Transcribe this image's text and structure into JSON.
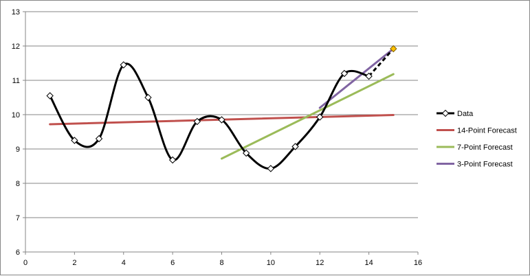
{
  "chart_data": {
    "type": "line",
    "title": "",
    "xlabel": "",
    "ylabel": "",
    "xlim": [
      0,
      16
    ],
    "ylim": [
      6,
      13
    ],
    "x_ticks": [
      0,
      2,
      4,
      6,
      8,
      10,
      12,
      14,
      16
    ],
    "y_ticks": [
      6,
      7,
      8,
      9,
      10,
      11,
      12,
      13
    ],
    "grid": "horizontal",
    "legend_position": "right",
    "series": [
      {
        "name": "Data",
        "color": "#000000",
        "style": "smooth-line-diamond-markers",
        "x": [
          1,
          2,
          3,
          4,
          5,
          6,
          7,
          8,
          9,
          10,
          11,
          12,
          13,
          14
        ],
        "y": [
          10.55,
          9.25,
          9.3,
          11.45,
          10.5,
          8.68,
          9.8,
          9.85,
          8.88,
          8.43,
          9.07,
          9.93,
          11.2,
          11.12
        ]
      },
      {
        "name": "Data (forecast extension)",
        "color": "#000000",
        "style": "dashed",
        "x": [
          14,
          15
        ],
        "y": [
          11.12,
          11.92
        ]
      },
      {
        "name": "14-Point Forecast",
        "color": "#C0504D",
        "style": "line",
        "x": [
          1,
          15
        ],
        "y": [
          9.72,
          9.99
        ]
      },
      {
        "name": "7-Point Forecast",
        "color": "#9BBB59",
        "style": "line",
        "x": [
          8,
          15
        ],
        "y": [
          8.72,
          11.18
        ]
      },
      {
        "name": "3-Point Forecast",
        "color": "#8064A2",
        "style": "line",
        "x": [
          12,
          15
        ],
        "y": [
          10.2,
          11.92
        ]
      }
    ],
    "forecast_point": {
      "x": 15,
      "y": 11.92,
      "color": "#FFC000"
    },
    "legend": [
      {
        "label": "Data",
        "color": "#000000",
        "marker": "diamond"
      },
      {
        "label": "14-Point Forecast",
        "color": "#C0504D",
        "marker": "none"
      },
      {
        "label": "7-Point Forecast",
        "color": "#9BBB59",
        "marker": "none"
      },
      {
        "label": "3-Point Forecast",
        "color": "#8064A2",
        "marker": "none"
      }
    ]
  }
}
